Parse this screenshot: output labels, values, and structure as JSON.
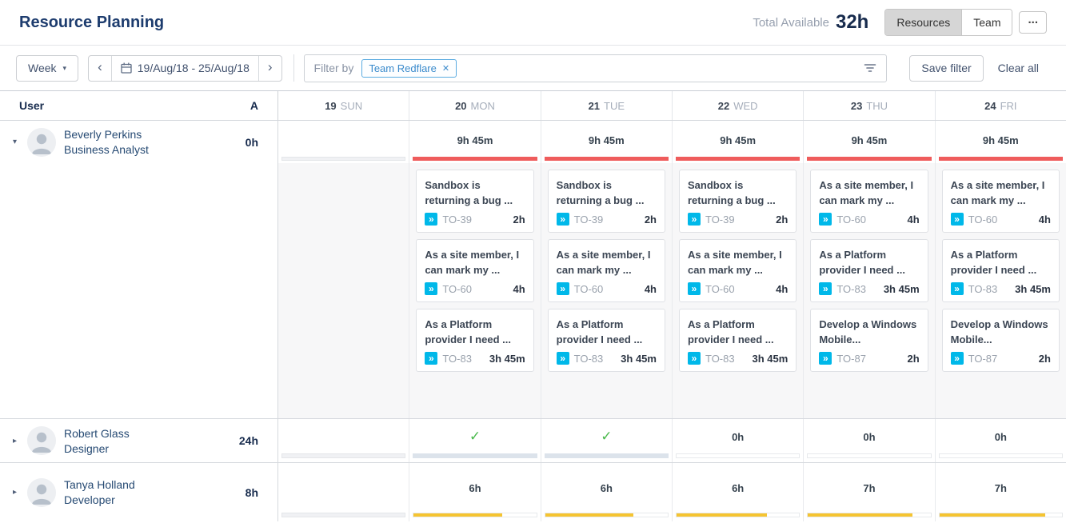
{
  "header": {
    "title": "Resource Planning",
    "total_available_label": "Total Available",
    "total_available_value": "32h",
    "views": [
      {
        "label": "Resources",
        "active": true
      },
      {
        "label": "Team",
        "active": false
      }
    ],
    "more_label": "..."
  },
  "toolbar": {
    "period": "Week",
    "date_range": "19/Aug/18 - 25/Aug/18",
    "filter_by_label": "Filter by",
    "tags": [
      {
        "label": "Team Redflare"
      }
    ],
    "save_filter_label": "Save filter",
    "clear_all_label": "Clear all"
  },
  "glyphs": {
    "caret": "▾",
    "prev": "‹",
    "next": "›",
    "tag_close": "✕",
    "toggle_expanded": "▾",
    "toggle_collapsed": "▸",
    "check": "✓",
    "story_icon": "»"
  },
  "grid": {
    "user_header": "User",
    "sort_letter": "A",
    "days": [
      {
        "num": "19",
        "name": "SUN"
      },
      {
        "num": "20",
        "name": "MON"
      },
      {
        "num": "21",
        "name": "TUE"
      },
      {
        "num": "22",
        "name": "WED"
      },
      {
        "num": "23",
        "name": "THU"
      },
      {
        "num": "24",
        "name": "FRI"
      }
    ],
    "users": [
      {
        "name": "Beverly Perkins",
        "role": "Business Analyst",
        "total": "0h",
        "expanded": true,
        "days": [
          {
            "bar": {
              "style": "gray",
              "fill": 100
            }
          },
          {
            "summary": "9h 45m",
            "bar": {
              "style": "red",
              "fill": 100
            },
            "cards": [
              {
                "title": "Sandbox is returning a bug ...",
                "key": "TO-39",
                "time": "2h"
              },
              {
                "title": "As a site member, I can mark my ...",
                "key": "TO-60",
                "time": "4h"
              },
              {
                "title": "As a Platform provider I need ...",
                "key": "TO-83",
                "time": "3h 45m"
              }
            ]
          },
          {
            "summary": "9h 45m",
            "bar": {
              "style": "red",
              "fill": 100
            },
            "cards": [
              {
                "title": "Sandbox is returning a bug ...",
                "key": "TO-39",
                "time": "2h"
              },
              {
                "title": "As a site member, I can mark my ...",
                "key": "TO-60",
                "time": "4h"
              },
              {
                "title": "As a Platform provider I need ...",
                "key": "TO-83",
                "time": "3h 45m"
              }
            ]
          },
          {
            "summary": "9h 45m",
            "bar": {
              "style": "red",
              "fill": 100
            },
            "cards": [
              {
                "title": "Sandbox is returning a bug ...",
                "key": "TO-39",
                "time": "2h"
              },
              {
                "title": "As a site member, I can mark my ...",
                "key": "TO-60",
                "time": "4h"
              },
              {
                "title": "As a Platform provider I need ...",
                "key": "TO-83",
                "time": "3h 45m"
              }
            ]
          },
          {
            "summary": "9h 45m",
            "bar": {
              "style": "red",
              "fill": 100
            },
            "cards": [
              {
                "title": "As a site member, I can mark my ...",
                "key": "TO-60",
                "time": "4h"
              },
              {
                "title": "As a Platform provider I need ...",
                "key": "TO-83",
                "time": "3h 45m"
              },
              {
                "title": "Develop a Windows Mobile...",
                "key": "TO-87",
                "time": "2h"
              }
            ]
          },
          {
            "summary": "9h 45m",
            "bar": {
              "style": "red",
              "fill": 100
            },
            "cards": [
              {
                "title": "As a site member, I can mark my ...",
                "key": "TO-60",
                "time": "4h"
              },
              {
                "title": "As a Platform provider I need ...",
                "key": "TO-83",
                "time": "3h 45m"
              },
              {
                "title": "Develop a Windows Mobile...",
                "key": "TO-87",
                "time": "2h"
              }
            ]
          }
        ]
      },
      {
        "name": "Robert Glass",
        "role": "Designer",
        "total": "24h",
        "expanded": false,
        "days": [
          {
            "bar": {
              "style": "gray",
              "fill": 100
            }
          },
          {
            "check": true,
            "bar": {
              "style": "blue",
              "fill": 100
            }
          },
          {
            "check": true,
            "bar": {
              "style": "blue",
              "fill": 100
            }
          },
          {
            "summary": "0h",
            "bar": {
              "style": "empty",
              "fill": 0
            }
          },
          {
            "summary": "0h",
            "bar": {
              "style": "empty",
              "fill": 0
            }
          },
          {
            "summary": "0h",
            "bar": {
              "style": "empty",
              "fill": 0
            }
          }
        ]
      },
      {
        "name": "Tanya Holland",
        "role": "Developer",
        "total": "8h",
        "expanded": false,
        "days": [
          {
            "bar": {
              "style": "gray",
              "fill": 100
            }
          },
          {
            "summary": "6h",
            "bar": {
              "style": "yellow",
              "fill": 72
            }
          },
          {
            "summary": "6h",
            "bar": {
              "style": "yellow",
              "fill": 72
            }
          },
          {
            "summary": "6h",
            "bar": {
              "style": "yellow",
              "fill": 74
            }
          },
          {
            "summary": "7h",
            "bar": {
              "style": "yellow",
              "fill": 85
            }
          },
          {
            "summary": "7h",
            "bar": {
              "style": "yellow",
              "fill": 86
            }
          }
        ]
      }
    ]
  },
  "colors": {
    "red_bar": "#EF5C5C",
    "yellow_bar": "#F5C431",
    "gray_bar_fill": "#F0F1F4",
    "gray_bar_border": "#E4E6E9",
    "blue_bar_fill": "#DCE3EB",
    "empty_bar_border": "#E7E9EC",
    "green_check": "#49B94B",
    "story_icon_bg": "#00B8E9"
  }
}
